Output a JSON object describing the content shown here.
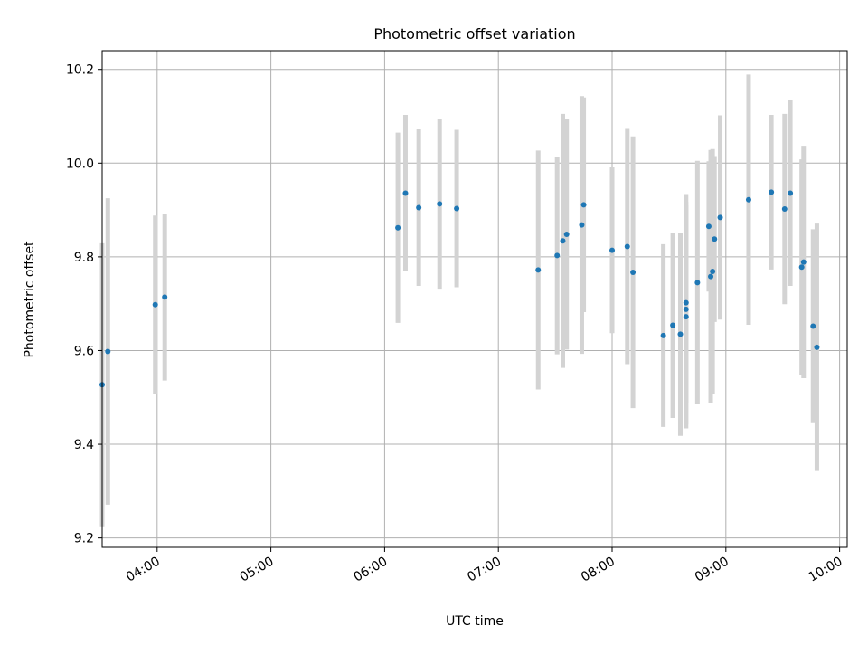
{
  "chart_data": {
    "type": "scatter",
    "title": "Photometric offset variation",
    "xlabel": "UTC time",
    "ylabel": "Photometric offset",
    "x_axis": "time",
    "xlim": [
      "03:31",
      "10:04"
    ],
    "ylim": [
      9.18,
      10.24
    ],
    "xticks": [
      "04:00",
      "05:00",
      "06:00",
      "07:00",
      "08:00",
      "09:00",
      "10:00"
    ],
    "yticks": [
      9.2,
      9.4,
      9.6,
      9.8,
      10.0,
      10.2
    ],
    "grid": true,
    "marker_color": "#1f77b4",
    "errorbar_color": "#d3d3d3",
    "points": [
      {
        "t": "03:31",
        "y": 9.527,
        "err": 0.302
      },
      {
        "t": "03:34",
        "y": 9.598,
        "err": 0.327
      },
      {
        "t": "03:59",
        "y": 9.698,
        "err": 0.19
      },
      {
        "t": "04:04",
        "y": 9.714,
        "err": 0.178
      },
      {
        "t": "06:07",
        "y": 9.862,
        "err": 0.203
      },
      {
        "t": "06:11",
        "y": 9.936,
        "err": 0.167
      },
      {
        "t": "06:18",
        "y": 9.905,
        "err": 0.167
      },
      {
        "t": "06:29",
        "y": 9.913,
        "err": 0.181
      },
      {
        "t": "06:38",
        "y": 9.903,
        "err": 0.168
      },
      {
        "t": "07:21",
        "y": 9.772,
        "err": 0.255
      },
      {
        "t": "07:31",
        "y": 9.803,
        "err": 0.211
      },
      {
        "t": "07:34",
        "y": 9.834,
        "err": 0.271
      },
      {
        "t": "07:36",
        "y": 9.848,
        "err": 0.246
      },
      {
        "t": "07:44",
        "y": 9.868,
        "err": 0.275
      },
      {
        "t": "07:45",
        "y": 9.911,
        "err": 0.229
      },
      {
        "t": "08:00",
        "y": 9.814,
        "err": 0.177
      },
      {
        "t": "08:08",
        "y": 9.822,
        "err": 0.251
      },
      {
        "t": "08:11",
        "y": 9.767,
        "err": 0.29
      },
      {
        "t": "08:27",
        "y": 9.632,
        "err": 0.195
      },
      {
        "t": "08:32",
        "y": 9.654,
        "err": 0.198
      },
      {
        "t": "08:36",
        "y": 9.635,
        "err": 0.217
      },
      {
        "t": "08:39",
        "y": 9.672,
        "err": 0.238
      },
      {
        "t": "08:39",
        "y": 9.688,
        "err": 0.246
      },
      {
        "t": "08:39",
        "y": 9.702,
        "err": 0.215
      },
      {
        "t": "08:45",
        "y": 9.745,
        "err": 0.26
      },
      {
        "t": "08:51",
        "y": 9.865,
        "err": 0.139
      },
      {
        "t": "08:52",
        "y": 9.758,
        "err": 0.27
      },
      {
        "t": "08:53",
        "y": 9.769,
        "err": 0.261
      },
      {
        "t": "08:54",
        "y": 9.838,
        "err": 0.177
      },
      {
        "t": "08:57",
        "y": 9.884,
        "err": 0.218
      },
      {
        "t": "09:12",
        "y": 9.922,
        "err": 0.267
      },
      {
        "t": "09:24",
        "y": 9.938,
        "err": 0.165
      },
      {
        "t": "09:31",
        "y": 9.902,
        "err": 0.203
      },
      {
        "t": "09:34",
        "y": 9.936,
        "err": 0.198
      },
      {
        "t": "09:40",
        "y": 9.778,
        "err": 0.23
      },
      {
        "t": "09:41",
        "y": 9.789,
        "err": 0.248
      },
      {
        "t": "09:46",
        "y": 9.652,
        "err": 0.207
      },
      {
        "t": "09:48",
        "y": 9.607,
        "err": 0.264
      }
    ]
  }
}
